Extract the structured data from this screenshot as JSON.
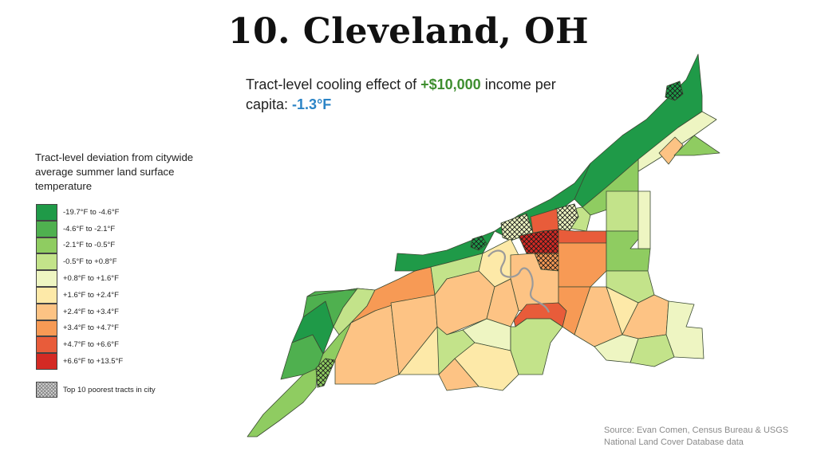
{
  "title": "10. Cleveland, OH",
  "subtitle": {
    "prefix": "Tract-level cooling effect of ",
    "income_value": "+$10,000",
    "middle": " income per capita: ",
    "temp_effect": "-1.3°F",
    "income_color": "#3e8e2f",
    "temp_color": "#2b84c6"
  },
  "legend": {
    "title": "Tract-level deviation from citywide average summer land surface temperature",
    "items": [
      {
        "label": "-19.7°F to -4.6°F",
        "color": "#1f9a48"
      },
      {
        "label": "-4.6°F to -2.1°F",
        "color": "#4fb04f"
      },
      {
        "label": "-2.1°F to -0.5°F",
        "color": "#8fcc61"
      },
      {
        "label": "-0.5°F to +0.8°F",
        "color": "#c3e38a"
      },
      {
        "label": "+0.8°F to +1.6°F",
        "color": "#eef5c2"
      },
      {
        "label": "+1.6°F to +2.4°F",
        "color": "#fde9a8"
      },
      {
        "label": "+2.4°F to +3.4°F",
        "color": "#fdc384"
      },
      {
        "label": "+3.4°F to +4.7°F",
        "color": "#f79a55"
      },
      {
        "label": "+4.7°F to +6.6°F",
        "color": "#e85c3a"
      },
      {
        "label": "+6.6°F to +13.5°F",
        "color": "#d42a24"
      }
    ],
    "poorest_label": "Top 10 poorest tracts in city"
  },
  "source": {
    "line1": "Source: Evan Comen, Census Bureau & USGS",
    "line2": "National Land Cover Database data"
  },
  "map": {
    "city": "Cleveland, OH",
    "description": "Census tract choropleth of summer land surface temperature deviation; lakefront tracts green (cooler), central/industrial tracts orange-red (hotter); 10 poorest tracts cross-hatched"
  }
}
